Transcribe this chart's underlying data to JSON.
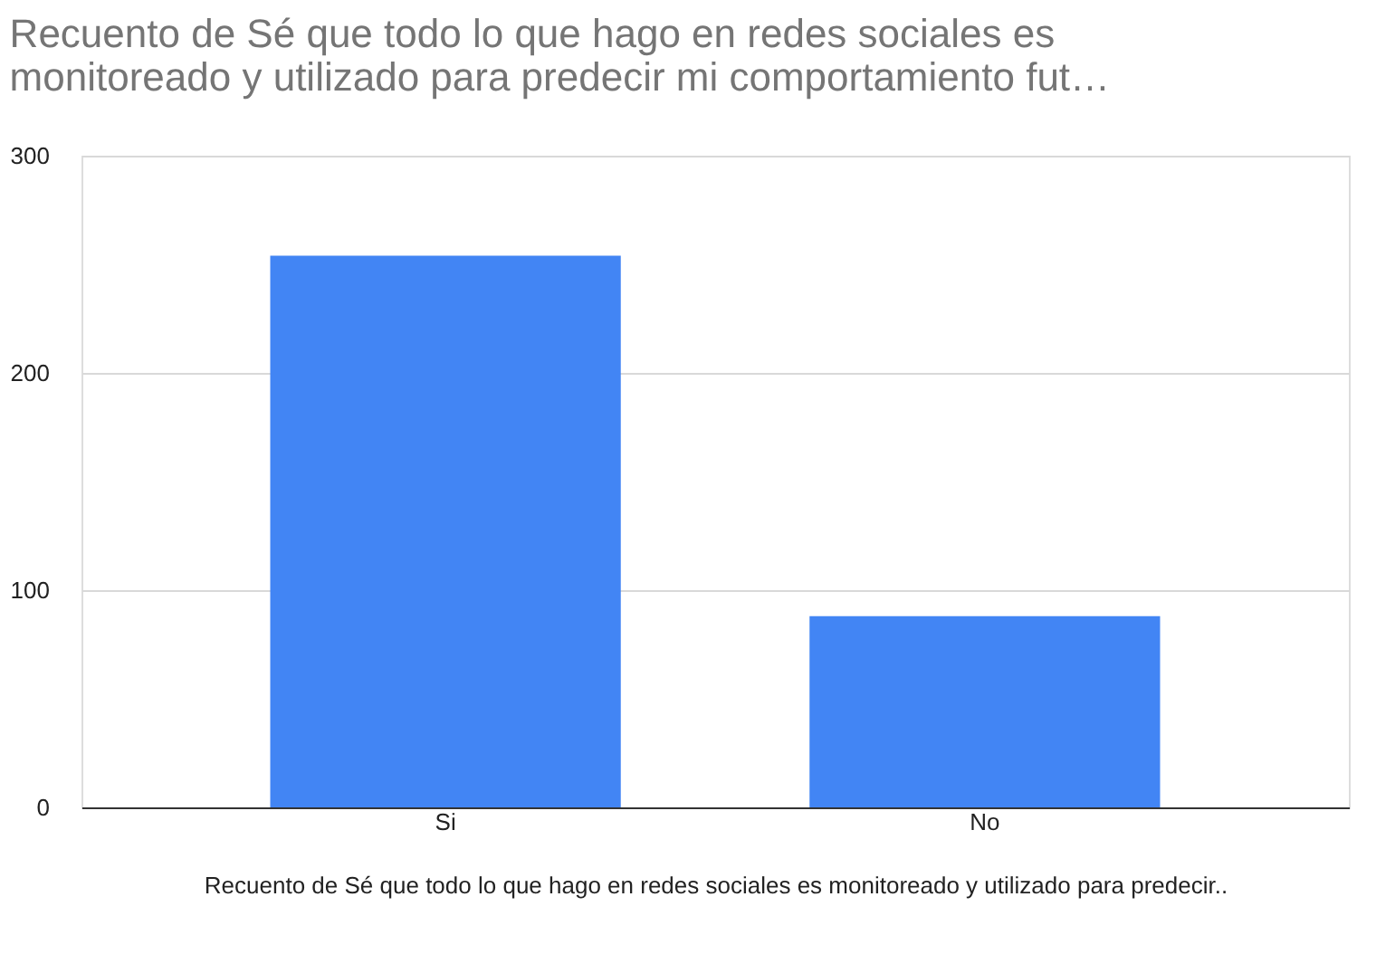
{
  "chart_data": {
    "type": "bar",
    "title": [
      "Recuento de Sé que todo lo que hago en redes sociales es",
      "monitoreado y utilizado para predecir mi comportamiento fut…"
    ],
    "xlabel": "Recuento de Sé que todo lo que hago en redes sociales es monitoreado y utilizado para predecir..",
    "categories": [
      "Si",
      "No"
    ],
    "values": [
      254,
      88
    ],
    "color": "#4285f4",
    "ylim": [
      0,
      300
    ],
    "yticks": [
      0,
      100,
      200,
      300
    ],
    "grid": "y",
    "legend": false
  }
}
